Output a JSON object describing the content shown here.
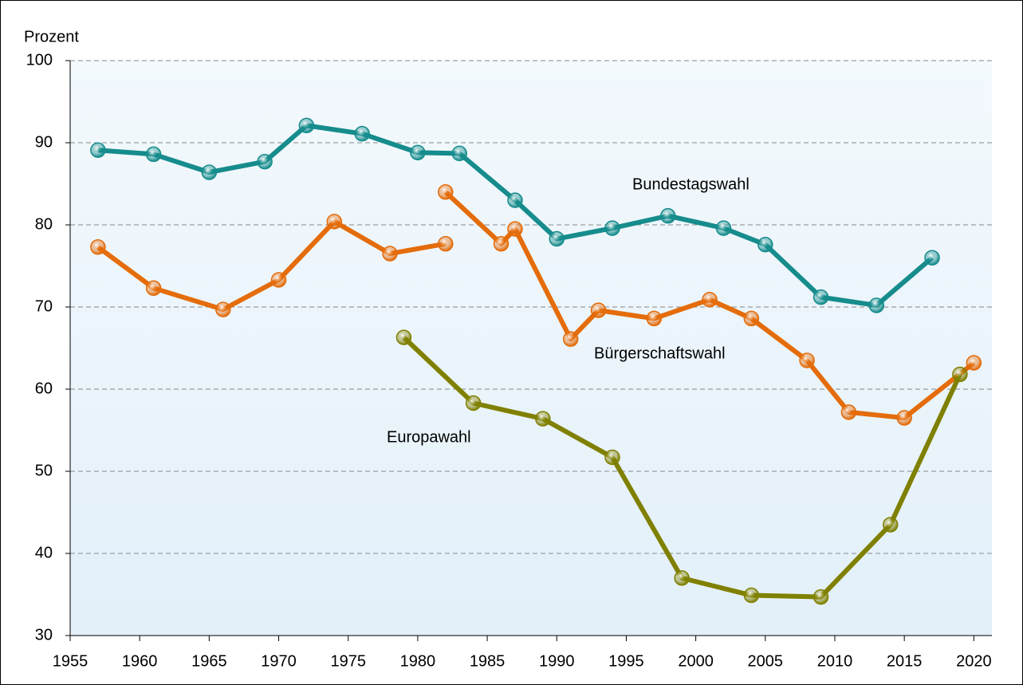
{
  "chart_data": {
    "type": "line",
    "y_label": "Prozent",
    "xlim": [
      1955,
      2021.3
    ],
    "xticks": [
      1955,
      1960,
      1965,
      1970,
      1975,
      1980,
      1985,
      1990,
      1995,
      2000,
      2005,
      2010,
      2015,
      2020
    ],
    "ylim": [
      30,
      100
    ],
    "yticks": [
      30,
      40,
      50,
      60,
      70,
      80,
      90,
      100
    ],
    "grid": true,
    "series": [
      {
        "name": "Bundestagswahl",
        "color": "#168c8c",
        "x": [
          1957,
          1961,
          1965,
          1969,
          1972,
          1976,
          1980,
          1983,
          1987,
          1990,
          1994,
          1998,
          2002,
          2005,
          2009,
          2013,
          2017
        ],
        "values": [
          89.1,
          88.6,
          86.4,
          87.7,
          92.1,
          91.1,
          88.8,
          88.7,
          83.0,
          78.3,
          79.6,
          81.1,
          79.6,
          77.6,
          71.2,
          70.2,
          76.0
        ]
      },
      {
        "name": "Bürgerschaftswahl",
        "color": "#e46c0a",
        "x": [
          1957,
          1961,
          1966,
          1970,
          1974,
          1978,
          1982,
          null,
          1982,
          1986,
          1987,
          1991,
          1993,
          1997,
          2001,
          2004,
          2008,
          2011,
          2015,
          2020
        ],
        "values": [
          77.3,
          72.3,
          69.7,
          73.3,
          80.4,
          76.5,
          77.7,
          null,
          84.0,
          77.7,
          79.5,
          66.1,
          69.6,
          68.6,
          70.9,
          68.6,
          63.5,
          57.2,
          56.5,
          63.2
        ]
      },
      {
        "name": "Europawahl",
        "color": "#808000",
        "x": [
          1979,
          1984,
          1989,
          1994,
          1999,
          2004,
          2009,
          2014,
          2019
        ],
        "values": [
          66.3,
          58.3,
          56.4,
          51.7,
          37.0,
          34.9,
          34.7,
          43.5,
          61.8
        ]
      }
    ]
  }
}
